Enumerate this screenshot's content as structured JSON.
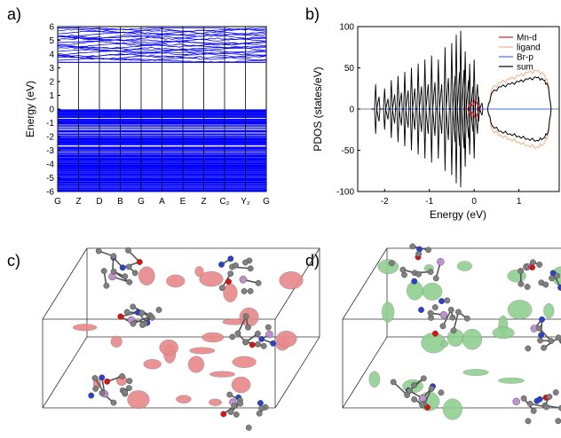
{
  "panel_labels": {
    "a": "a)",
    "b": "b)",
    "c": "c)",
    "d": "d)"
  },
  "chart_data": [
    {
      "type": "line",
      "panel": "a)",
      "ylabel": "Energy (eV)",
      "ylim": [
        -6,
        6
      ],
      "yticks": [
        6,
        5,
        4,
        3,
        2,
        1,
        0,
        -1,
        -2,
        -3,
        -4,
        -5,
        -6
      ],
      "kpoints": [
        "G",
        "Z",
        "D",
        "B",
        "G",
        "A",
        "E",
        "Z",
        "C₂",
        "Y₂",
        "G"
      ],
      "series_color": "#0000ff",
      "conduction_band_range": [
        3.4,
        5.9
      ],
      "valence_band_range": [
        -6,
        -0.05
      ]
    },
    {
      "type": "line",
      "panel": "b)",
      "xlabel": "Energy (eV)",
      "ylabel": "PDOS (states/eV)",
      "xlim": [
        -2.6,
        1.9
      ],
      "ylim": [
        -100,
        100
      ],
      "xticks": [
        -2,
        -1,
        0,
        1
      ],
      "yticks": [
        100,
        50,
        0,
        -50,
        -100
      ],
      "series": [
        {
          "name": "Mn-d",
          "color": "#e41a1c"
        },
        {
          "name": "ligand",
          "color": "#f4b183"
        },
        {
          "name": "Br-p",
          "color": "#4a6cf7"
        },
        {
          "name": "sum",
          "color": "#000000"
        }
      ],
      "sum_spikes_up": [
        [
          -2.2,
          30
        ],
        [
          -2.0,
          25
        ],
        [
          -1.85,
          35
        ],
        [
          -1.7,
          40
        ],
        [
          -1.55,
          45
        ],
        [
          -1.4,
          50
        ],
        [
          -1.25,
          55
        ],
        [
          -1.1,
          60
        ],
        [
          -0.95,
          65
        ],
        [
          -0.8,
          60
        ],
        [
          -0.65,
          75
        ],
        [
          -0.5,
          80
        ],
        [
          -0.4,
          90
        ],
        [
          -0.3,
          95
        ],
        [
          -0.2,
          70
        ],
        [
          -0.1,
          55
        ],
        [
          0.0,
          60
        ],
        [
          0.1,
          15
        ]
      ],
      "sum_spikes_down": [
        [
          -2.2,
          -30
        ],
        [
          -2.0,
          -25
        ],
        [
          -1.85,
          -35
        ],
        [
          -1.7,
          -40
        ],
        [
          -1.55,
          -45
        ],
        [
          -1.4,
          -50
        ],
        [
          -1.25,
          -55
        ],
        [
          -1.1,
          -60
        ],
        [
          -0.95,
          -65
        ],
        [
          -0.8,
          -60
        ],
        [
          -0.65,
          -75
        ],
        [
          -0.5,
          -80
        ],
        [
          -0.4,
          -90
        ],
        [
          -0.3,
          -95
        ],
        [
          -0.2,
          -70
        ],
        [
          -0.1,
          -55
        ],
        [
          0.0,
          -60
        ],
        [
          0.1,
          -15
        ]
      ],
      "sum_hump": [
        [
          0.3,
          0
        ],
        [
          0.4,
          20
        ],
        [
          0.6,
          27
        ],
        [
          0.8,
          30
        ],
        [
          1.0,
          33
        ],
        [
          1.2,
          36
        ],
        [
          1.4,
          38
        ],
        [
          1.55,
          35
        ],
        [
          1.65,
          28
        ],
        [
          1.72,
          0
        ]
      ],
      "ligand_hump": [
        [
          0.3,
          0
        ],
        [
          0.4,
          25
        ],
        [
          0.6,
          32
        ],
        [
          0.8,
          36
        ],
        [
          1.0,
          40
        ],
        [
          1.2,
          44
        ],
        [
          1.4,
          46
        ],
        [
          1.55,
          42
        ],
        [
          1.65,
          32
        ],
        [
          1.72,
          0
        ]
      ]
    }
  ],
  "structures": {
    "c": {
      "isosurface_color": "#e8888a"
    },
    "d": {
      "isosurface_color": "#90d090"
    }
  },
  "atom_colors": {
    "carbon": "#808080",
    "nitrogen": "#2a3fd6",
    "oxygen": "#e01010",
    "manganese": "#c090d0"
  }
}
